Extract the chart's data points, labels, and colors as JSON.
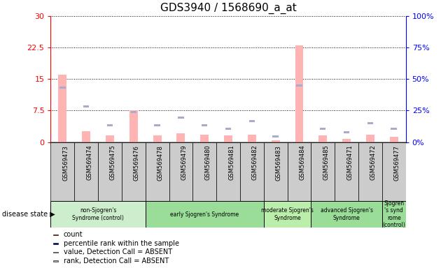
{
  "title": "GDS3940 / 1568690_a_at",
  "samples": [
    "GSM569473",
    "GSM569474",
    "GSM569475",
    "GSM569476",
    "GSM569478",
    "GSM569479",
    "GSM569480",
    "GSM569481",
    "GSM569482",
    "GSM569483",
    "GSM569484",
    "GSM569485",
    "GSM569471",
    "GSM569472",
    "GSM569477"
  ],
  "value_absent": [
    16.0,
    2.5,
    1.5,
    7.5,
    1.5,
    2.0,
    1.8,
    1.5,
    1.8,
    0.5,
    23.0,
    1.5,
    0.8,
    1.8,
    1.2
  ],
  "rank_absent": [
    43.0,
    28.0,
    13.5,
    24.0,
    13.5,
    19.5,
    13.5,
    10.5,
    16.5,
    4.5,
    45.0,
    10.5,
    7.5,
    15.0,
    10.5
  ],
  "groups": [
    {
      "label": "non-Sjogren's\nSyndrome (control)",
      "start": 0,
      "end": 4,
      "color": "#cceecc"
    },
    {
      "label": "early Sjogren's Syndrome",
      "start": 4,
      "end": 9,
      "color": "#99dd99"
    },
    {
      "label": "moderate Sjogren's\nSyndrome",
      "start": 9,
      "end": 11,
      "color": "#bbeeaa"
    },
    {
      "label": "advanced Sjogren's\nSyndrome",
      "start": 11,
      "end": 14,
      "color": "#99dd99"
    },
    {
      "label": "Sjogren\n's synd\nrome\n(control)",
      "start": 14,
      "end": 15,
      "color": "#99dd99"
    }
  ],
  "ylim_left": [
    0,
    30
  ],
  "ylim_right": [
    0,
    100
  ],
  "yticks_left": [
    0,
    7.5,
    15,
    22.5,
    30
  ],
  "ytick_labels_left": [
    "0",
    "7.5",
    "15",
    "22.5",
    "30"
  ],
  "yticks_right": [
    0,
    25,
    50,
    75,
    100
  ],
  "ytick_labels_right": [
    "0%",
    "25%",
    "50%",
    "75%",
    "100%"
  ],
  "color_value_absent": "#ffb3b3",
  "color_rank_absent": "#aaaacc",
  "legend_items": [
    {
      "label": "count",
      "color": "#cc0000",
      "marker": "s"
    },
    {
      "label": "percentile rank within the sample",
      "color": "#000099",
      "marker": "s"
    },
    {
      "label": "value, Detection Call = ABSENT",
      "color": "#ffb3b3",
      "marker": "s"
    },
    {
      "label": "rank, Detection Call = ABSENT",
      "color": "#aaaacc",
      "marker": "s"
    }
  ],
  "plot_bg": "#ffffff",
  "xtick_bg": "#cccccc",
  "figure_bg": "#ffffff"
}
